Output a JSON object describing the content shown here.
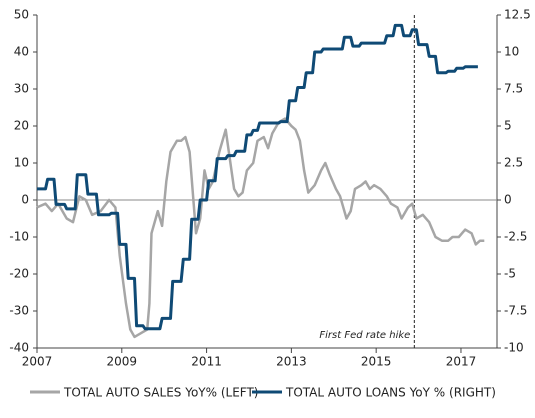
{
  "chart_data": {
    "type": "line",
    "xlim": [
      2007,
      2017.85
    ],
    "xticks": [
      2007,
      2009,
      2011,
      2013,
      2015,
      2017
    ],
    "ylim": [
      -40,
      50
    ],
    "yticks": [
      -40,
      -30,
      -20,
      -10,
      0,
      10,
      20,
      30,
      40,
      50
    ],
    "y2lim": [
      -10,
      12.5
    ],
    "y2ticks": [
      -10,
      -7.5,
      -5,
      -2.5,
      0,
      2.5,
      5,
      7.5,
      10,
      12.5
    ],
    "legend": "bottom",
    "annotations": [
      {
        "text": "First Fed rate hike",
        "x": 2015.9
      }
    ],
    "series": [
      {
        "name": "TOTAL AUTO SALES YoY% (LEFT)",
        "color": "#a6a6a6",
        "x": [
          2007.0,
          2007.2,
          2007.35,
          2007.5,
          2007.7,
          2007.85,
          2008.0,
          2008.15,
          2008.3,
          2008.5,
          2008.7,
          2008.85,
          2008.95,
          2009.1,
          2009.2,
          2009.3,
          2009.45,
          2009.6,
          2009.65,
          2009.7,
          2009.85,
          2009.95,
          2010.05,
          2010.15,
          2010.3,
          2010.4,
          2010.5,
          2010.6,
          2010.75,
          2010.85,
          2010.95,
          2011.05,
          2011.15,
          2011.3,
          2011.45,
          2011.55,
          2011.65,
          2011.75,
          2011.85,
          2011.95,
          2012.1,
          2012.2,
          2012.35,
          2012.45,
          2012.55,
          2012.7,
          2012.85,
          2013.0,
          2013.1,
          2013.2,
          2013.3,
          2013.4,
          2013.55,
          2013.7,
          2013.8,
          2013.9,
          2014.05,
          2014.15,
          2014.3,
          2014.4,
          2014.5,
          2014.65,
          2014.75,
          2014.85,
          2014.95,
          2015.1,
          2015.25,
          2015.35,
          2015.5,
          2015.6,
          2015.75,
          2015.85,
          2015.95,
          2016.1,
          2016.25,
          2016.4,
          2016.55,
          2016.7,
          2016.8,
          2016.95,
          2017.1,
          2017.25,
          2017.35,
          2017.45,
          2017.55
        ],
        "values": [
          -2,
          -1,
          -3,
          -1,
          -5,
          -6,
          1,
          0,
          -4,
          -3,
          0,
          -2,
          -15,
          -28,
          -35,
          -37,
          -36,
          -35,
          -28,
          -9,
          -3,
          -7,
          5,
          13,
          16,
          16,
          17,
          13,
          -9,
          -5,
          8,
          3,
          5,
          13,
          19,
          11,
          3,
          1,
          2,
          8,
          10,
          16,
          17,
          14,
          18,
          21,
          22,
          20,
          19,
          16,
          8,
          2,
          4,
          8,
          10,
          7,
          3,
          1,
          -5,
          -3,
          3,
          4,
          5,
          3,
          4,
          3,
          1,
          -1,
          -2,
          -5,
          -2,
          -1,
          -5,
          -4,
          -6,
          -10,
          -11,
          -11,
          -10,
          -10,
          -8,
          -9,
          -12,
          -11,
          -11
        ]
      },
      {
        "name": "TOTAL AUTO LOANS YoY % (RIGHT)",
        "color": "#0f4a75",
        "axis": "y2",
        "x": [
          2007.0,
          2007.2,
          2007.25,
          2007.4,
          2007.45,
          2007.65,
          2007.7,
          2007.9,
          2007.95,
          2008.15,
          2008.2,
          2008.4,
          2008.45,
          2008.7,
          2008.75,
          2008.9,
          2008.95,
          2009.1,
          2009.15,
          2009.3,
          2009.35,
          2009.5,
          2009.55,
          2009.9,
          2009.95,
          2010.15,
          2010.2,
          2010.4,
          2010.45,
          2010.6,
          2010.65,
          2010.8,
          2010.85,
          2011.0,
          2011.05,
          2011.2,
          2011.25,
          2011.45,
          2011.5,
          2011.65,
          2011.7,
          2011.9,
          2011.95,
          2012.05,
          2012.1,
          2012.2,
          2012.25,
          2012.7,
          2012.75,
          2012.9,
          2012.95,
          2013.1,
          2013.15,
          2013.3,
          2013.35,
          2013.5,
          2013.55,
          2013.7,
          2013.75,
          2014.2,
          2014.25,
          2014.4,
          2014.45,
          2014.6,
          2014.65,
          2015.2,
          2015.25,
          2015.4,
          2015.45,
          2015.6,
          2015.65,
          2015.8,
          2015.85,
          2015.95,
          2016.0,
          2016.2,
          2016.25,
          2016.4,
          2016.45,
          2016.65,
          2016.7,
          2016.85,
          2016.9,
          2017.05,
          2017.1,
          2017.4
        ],
        "values": [
          0.75,
          0.75,
          1.4,
          1.4,
          -0.3,
          -0.3,
          -0.6,
          -0.6,
          1.7,
          1.7,
          0.4,
          0.4,
          -1,
          -1,
          -0.9,
          -0.9,
          -3,
          -3,
          -5.3,
          -5.3,
          -8.5,
          -8.5,
          -8.7,
          -8.7,
          -8,
          -8,
          -5.5,
          -5.5,
          -4,
          -4,
          -1.3,
          -1.3,
          0,
          0,
          1.3,
          1.3,
          2.8,
          2.8,
          3,
          3,
          3.3,
          3.3,
          4.4,
          4.4,
          4.7,
          4.7,
          5.2,
          5.2,
          5.3,
          5.3,
          6.7,
          6.7,
          7.6,
          7.6,
          8.6,
          8.6,
          10,
          10,
          10.2,
          10.2,
          11,
          11,
          10.4,
          10.4,
          10.6,
          10.6,
          11.1,
          11.1,
          11.8,
          11.8,
          11.1,
          11.1,
          11.5,
          11.5,
          10.5,
          10.5,
          9.7,
          9.7,
          8.6,
          8.6,
          8.7,
          8.7,
          8.9,
          8.9,
          9,
          9
        ]
      }
    ]
  }
}
